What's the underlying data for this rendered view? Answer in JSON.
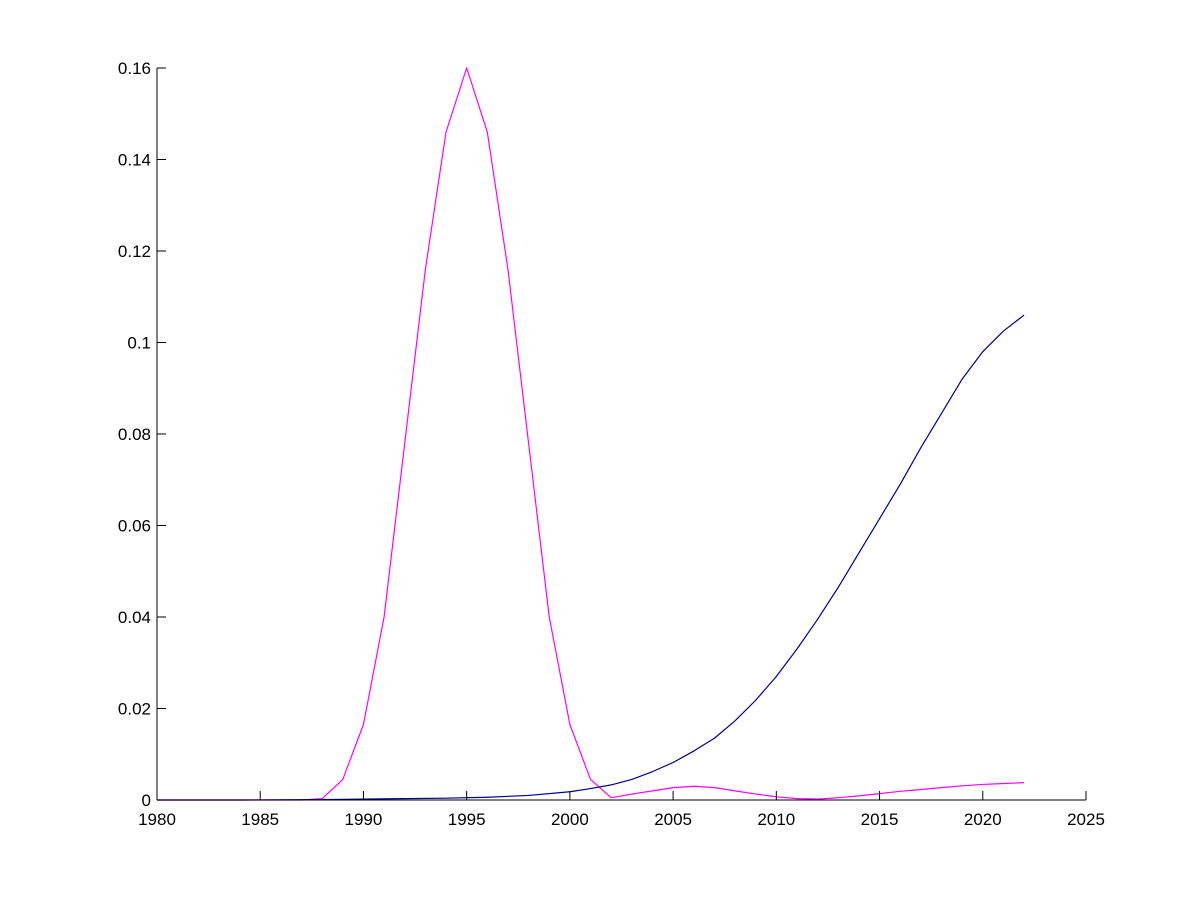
{
  "chart_data": {
    "type": "line",
    "title": "",
    "xlabel": "",
    "ylabel": "",
    "xlim": [
      1980,
      2025
    ],
    "ylim": [
      0,
      0.16
    ],
    "grid": false,
    "xticks": [
      {
        "value": 1980,
        "label": "1980"
      },
      {
        "value": 1985,
        "label": "1985"
      },
      {
        "value": 1990,
        "label": "1990"
      },
      {
        "value": 1995,
        "label": "1995"
      },
      {
        "value": 2000,
        "label": "2000"
      },
      {
        "value": 2005,
        "label": "2005"
      },
      {
        "value": 2010,
        "label": "2010"
      },
      {
        "value": 2015,
        "label": "2015"
      },
      {
        "value": 2020,
        "label": "2020"
      },
      {
        "value": 2025,
        "label": "2025"
      }
    ],
    "yticks": [
      {
        "value": 0,
        "label": "0"
      },
      {
        "value": 0.02,
        "label": "0.02"
      },
      {
        "value": 0.04,
        "label": "0.04"
      },
      {
        "value": 0.06,
        "label": "0.06"
      },
      {
        "value": 0.08,
        "label": "0.08"
      },
      {
        "value": 0.1,
        "label": "0.1"
      },
      {
        "value": 0.12,
        "label": "0.12"
      },
      {
        "value": 0.14,
        "label": "0.14"
      },
      {
        "value": 0.16,
        "label": "0.16"
      }
    ],
    "series": [
      {
        "color": "#ff00ff",
        "points": [
          [
            1980,
            0
          ],
          [
            1981,
            0
          ],
          [
            1982,
            0
          ],
          [
            1983,
            0
          ],
          [
            1984,
            0
          ],
          [
            1985,
            0
          ],
          [
            1986,
            0
          ],
          [
            1987,
            0
          ],
          [
            1988,
            0.0003
          ],
          [
            1989,
            0.0045
          ],
          [
            1990,
            0.0165
          ],
          [
            1991,
            0.04
          ],
          [
            1992,
            0.078
          ],
          [
            1993,
            0.116
          ],
          [
            1994,
            0.146
          ],
          [
            1995,
            0.16
          ],
          [
            1996,
            0.146
          ],
          [
            1997,
            0.116
          ],
          [
            1998,
            0.078
          ],
          [
            1999,
            0.04
          ],
          [
            2000,
            0.0165
          ],
          [
            2001,
            0.0045
          ],
          [
            2002,
            0.0005
          ],
          [
            2003,
            0.0013
          ],
          [
            2004,
            0.002
          ],
          [
            2005,
            0.0027
          ],
          [
            2006,
            0.003
          ],
          [
            2007,
            0.0027
          ],
          [
            2008,
            0.002
          ],
          [
            2009,
            0.0013
          ],
          [
            2010,
            0.0007
          ],
          [
            2011,
            0.0003
          ],
          [
            2012,
            0.0002
          ],
          [
            2013,
            0.0005
          ],
          [
            2014,
            0.0009
          ],
          [
            2015,
            0.0014
          ],
          [
            2016,
            0.0019
          ],
          [
            2017,
            0.0023
          ],
          [
            2018,
            0.0027
          ],
          [
            2019,
            0.0031
          ],
          [
            2020,
            0.0034
          ],
          [
            2021,
            0.0036
          ],
          [
            2022,
            0.0038
          ]
        ]
      },
      {
        "color": "#00008b",
        "points": [
          [
            1980,
            0
          ],
          [
            1984,
            0
          ],
          [
            1988,
            0.0001
          ],
          [
            1990,
            0.0002
          ],
          [
            1992,
            0.0003
          ],
          [
            1994,
            0.0004
          ],
          [
            1996,
            0.0006
          ],
          [
            1998,
            0.001
          ],
          [
            2000,
            0.0018
          ],
          [
            2001,
            0.0025
          ],
          [
            2002,
            0.0033
          ],
          [
            2003,
            0.0045
          ],
          [
            2004,
            0.0062
          ],
          [
            2005,
            0.0082
          ],
          [
            2006,
            0.0107
          ],
          [
            2007,
            0.0135
          ],
          [
            2008,
            0.0173
          ],
          [
            2009,
            0.0218
          ],
          [
            2010,
            0.027
          ],
          [
            2011,
            0.033
          ],
          [
            2012,
            0.0395
          ],
          [
            2013,
            0.0465
          ],
          [
            2014,
            0.054
          ],
          [
            2015,
            0.0615
          ],
          [
            2016,
            0.069
          ],
          [
            2017,
            0.077
          ],
          [
            2018,
            0.0845
          ],
          [
            2019,
            0.092
          ],
          [
            2020,
            0.098
          ],
          [
            2021,
            0.1025
          ],
          [
            2022,
            0.106
          ]
        ]
      }
    ]
  }
}
